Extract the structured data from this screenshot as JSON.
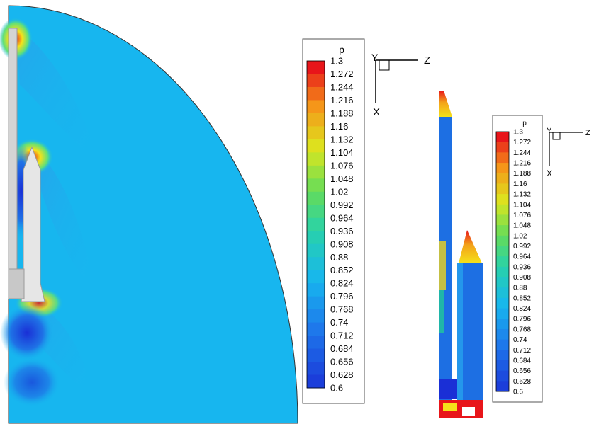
{
  "colorbar": {
    "variable": "p",
    "levels": [
      "1.3",
      "1.272",
      "1.244",
      "1.216",
      "1.188",
      "1.16",
      "1.132",
      "1.104",
      "1.076",
      "1.048",
      "1.02",
      "0.992",
      "0.964",
      "0.936",
      "0.908",
      "0.88",
      "0.852",
      "0.824",
      "0.796",
      "0.768",
      "0.74",
      "0.712",
      "0.684",
      "0.656",
      "0.628",
      "0.6"
    ],
    "min": 0.6,
    "max": 1.3
  },
  "axes": {
    "main": {
      "y_label": "Y",
      "z_label": "Z",
      "x_label": "X"
    },
    "small": {
      "y_label": "Y",
      "z_label": "Z",
      "x_label": "X"
    }
  },
  "colors": {
    "background_field": "#17b6ef",
    "high": "#e8151a",
    "mid": "#f5e21a",
    "low": "#1a2fd6",
    "body": "#d9d9d9"
  }
}
